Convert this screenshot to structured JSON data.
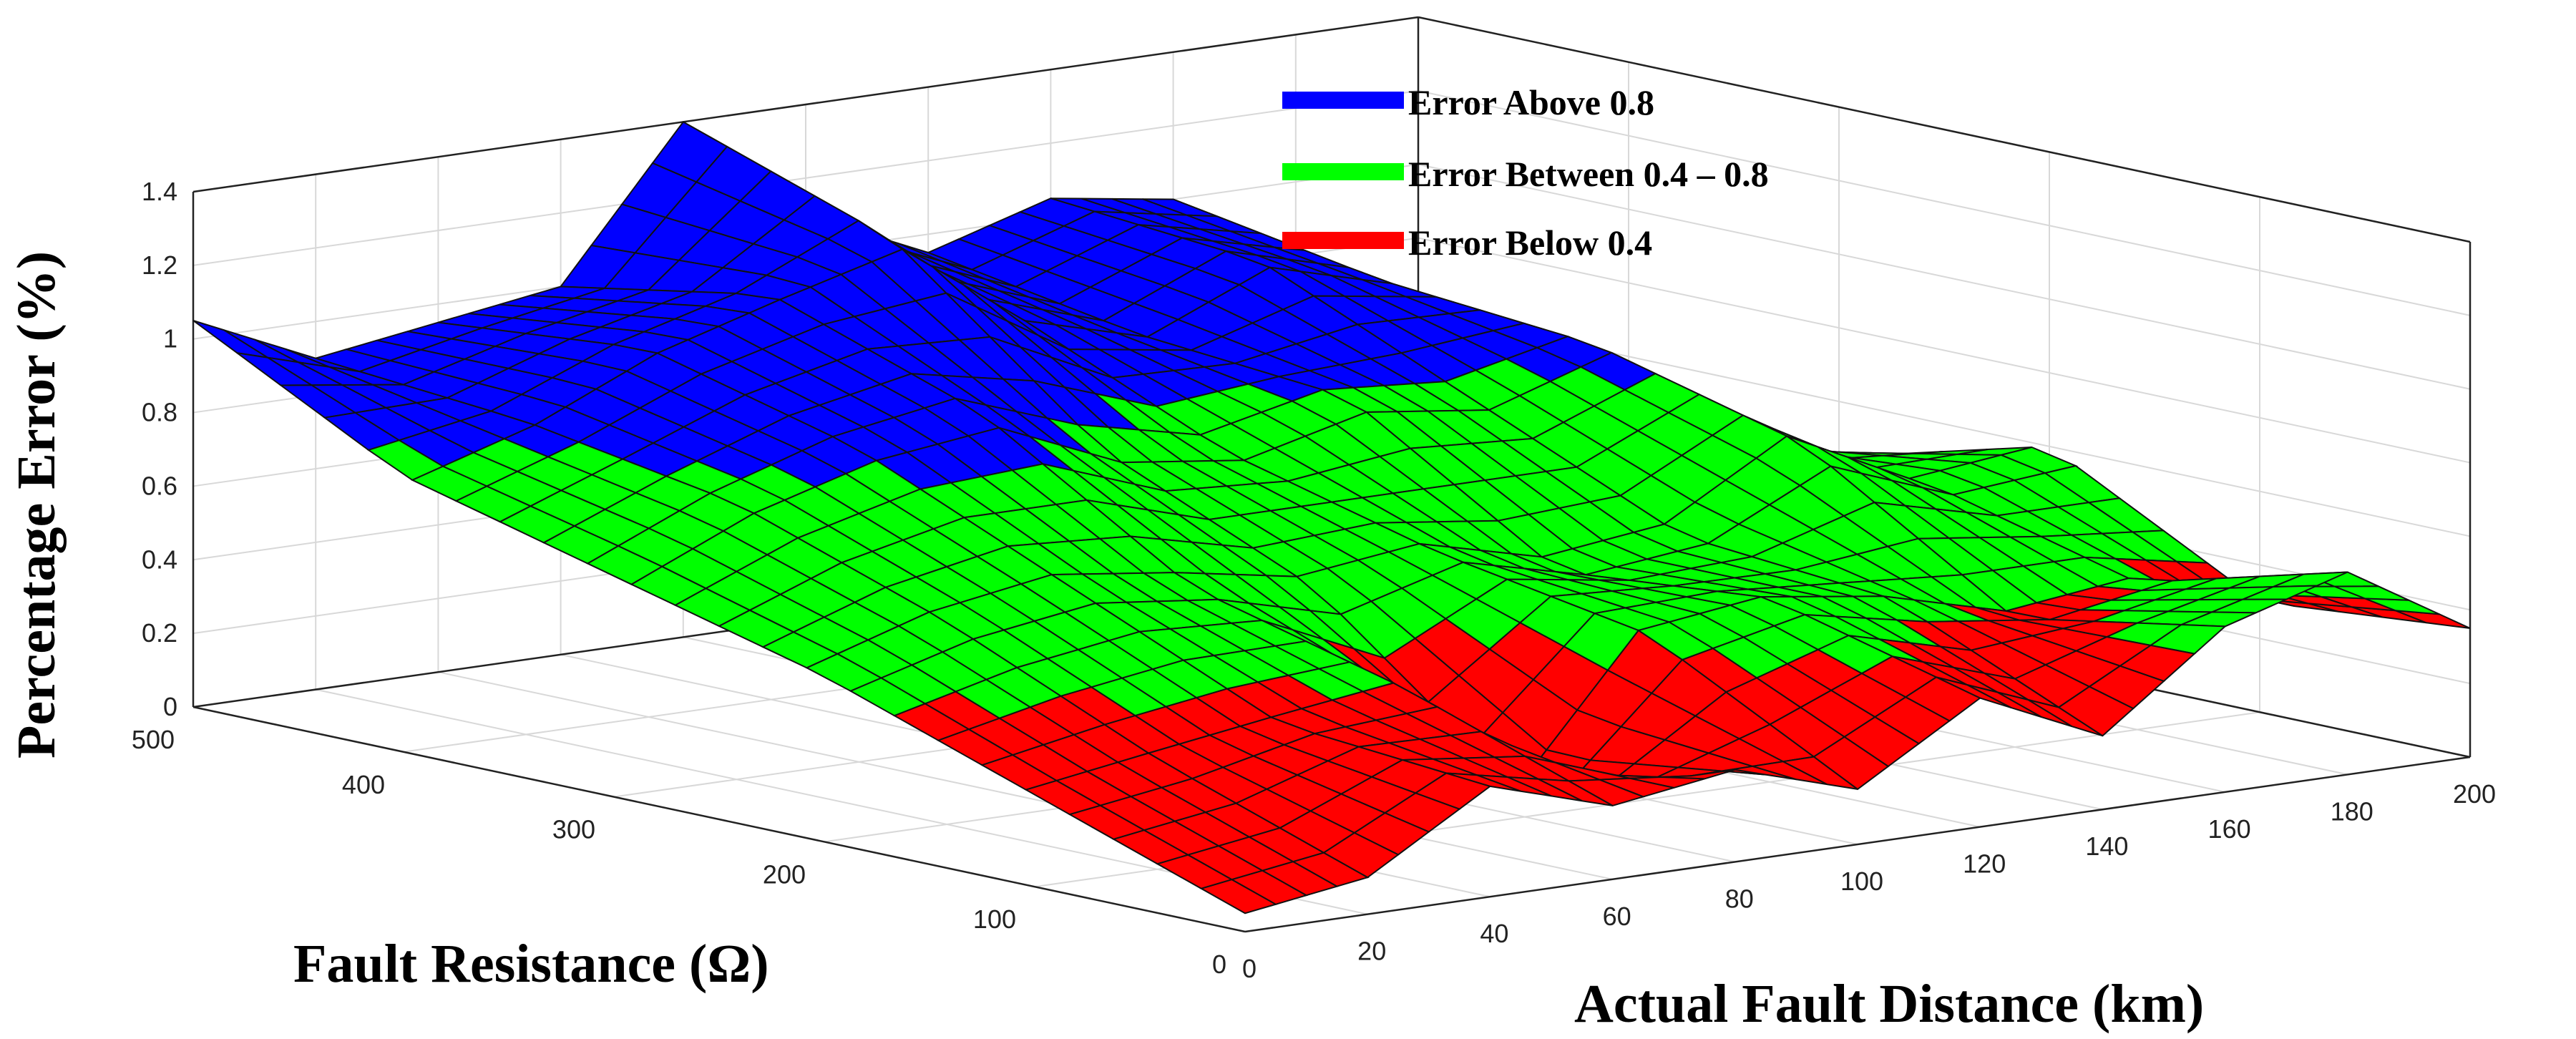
{
  "chart_data": {
    "type": "surface3d",
    "title": "",
    "xlabel": "Actual Fault Distance (km)",
    "ylabel": "Fault Resistance (Ω)",
    "zlabel": "Percentage Error (%)",
    "xlim": [
      0,
      200
    ],
    "ylim": [
      0,
      500
    ],
    "zlim": [
      0,
      1.4
    ],
    "x_ticks": [
      "0",
      "20",
      "40",
      "60",
      "80",
      "100",
      "120",
      "140",
      "160",
      "180",
      "200"
    ],
    "y_ticks": [
      "0",
      "100",
      "200",
      "300",
      "400",
      "500"
    ],
    "z_ticks": [
      "0",
      "0.2",
      "0.4",
      "0.6",
      "0.8",
      "1",
      "1.2",
      "1.4"
    ],
    "grid": true,
    "legend_position": "top-center",
    "thresholds": [
      0.4,
      0.8
    ],
    "colors": {
      "above": "#0000ff",
      "between": "#00ff00",
      "below": "#ff0000",
      "edge": "#111111"
    },
    "legend": [
      {
        "label": "Error Above 0.8",
        "color": "#0000ff"
      },
      {
        "label": "Error Between 0.4 – 0.8",
        "color": "#00ff00"
      },
      {
        "label": "Error Below 0.4",
        "color": "#ff0000"
      }
    ],
    "grid_x_km": [
      0,
      20,
      40,
      60,
      80,
      100,
      120,
      140,
      160,
      180,
      200
    ],
    "grid_y_ohm": [
      0,
      100,
      200,
      300,
      400,
      500
    ],
    "error_surface_pct": [
      [
        0.05,
        0.1,
        0.3,
        0.2,
        0.25,
        0.15,
        0.35,
        0.2,
        0.45,
        0.55,
        0.35
      ],
      [
        0.25,
        0.3,
        0.35,
        0.4,
        0.05,
        0.45,
        0.5,
        0.45,
        0.35,
        0.4,
        0.3
      ],
      [
        0.45,
        0.55,
        0.6,
        0.55,
        0.5,
        0.55,
        0.45,
        0.5,
        0.7,
        0.55,
        0.6
      ],
      [
        0.6,
        0.75,
        0.85,
        0.9,
        0.75,
        0.7,
        0.8,
        0.75,
        0.85,
        0.55,
        0.45
      ],
      [
        0.75,
        0.85,
        1.0,
        1.1,
        1.2,
        0.95,
        0.85,
        1.0,
        0.9,
        0.6,
        0.5
      ],
      [
        1.05,
        0.9,
        0.95,
        1.0,
        1.4,
        1.1,
        0.95,
        1.05,
        1.0,
        0.7,
        0.55
      ]
    ]
  }
}
